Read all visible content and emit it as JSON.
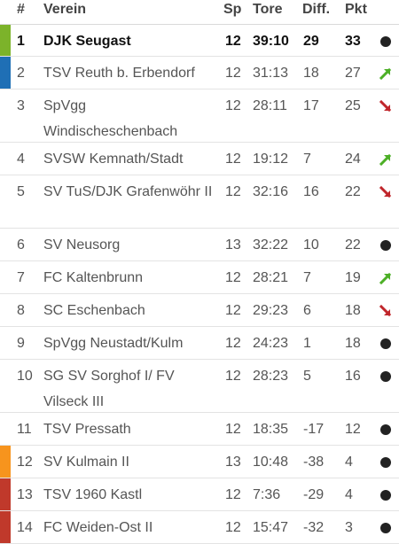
{
  "header": {
    "rank": "#",
    "team": "Verein",
    "sp": "Sp",
    "tore": "Tore",
    "diff": "Diff.",
    "pkt": "Pkt"
  },
  "rows": [
    {
      "rank": "1",
      "team": "DJK Seugast",
      "sp": "12",
      "tore": "39:10",
      "diff": "29",
      "pkt": "33",
      "trend": "same-dot-icon",
      "bar": "#7cb32a",
      "leader": true
    },
    {
      "rank": "2",
      "team": "TSV Reuth b. Erbendorf",
      "sp": "12",
      "tore": "31:13",
      "diff": "18",
      "pkt": "27",
      "trend": "up-arrow-icon",
      "bar": "#1f6fb5"
    },
    {
      "rank": "3",
      "team": "SpVgg Windischeschenbach",
      "sp": "12",
      "tore": "28:11",
      "diff": "17",
      "pkt": "25",
      "trend": "down-arrow-icon",
      "bar": ""
    },
    {
      "rank": "4",
      "team": "SVSW Kemnath/Stadt",
      "sp": "12",
      "tore": "19:12",
      "diff": "7",
      "pkt": "24",
      "trend": "up-arrow-icon",
      "bar": ""
    },
    {
      "rank": "5",
      "team": "SV TuS/DJK Grafenwöhr II",
      "sp": "12",
      "tore": "32:16",
      "diff": "16",
      "pkt": "22",
      "trend": "down-arrow-icon",
      "bar": ""
    },
    {
      "rank": "6",
      "team": "SV Neusorg",
      "sp": "13",
      "tore": "32:22",
      "diff": "10",
      "pkt": "22",
      "trend": "same-dot-icon",
      "bar": ""
    },
    {
      "rank": "7",
      "team": "FC Kaltenbrunn",
      "sp": "12",
      "tore": "28:21",
      "diff": "7",
      "pkt": "19",
      "trend": "up-arrow-icon",
      "bar": ""
    },
    {
      "rank": "8",
      "team": "SC Eschenbach",
      "sp": "12",
      "tore": "29:23",
      "diff": "6",
      "pkt": "18",
      "trend": "down-arrow-icon",
      "bar": ""
    },
    {
      "rank": "9",
      "team": "SpVgg Neustadt/Kulm",
      "sp": "12",
      "tore": "24:23",
      "diff": "1",
      "pkt": "18",
      "trend": "same-dot-icon",
      "bar": ""
    },
    {
      "rank": "10",
      "team": "SG SV Sorghof I/ FV Vilseck III",
      "sp": "12",
      "tore": "28:23",
      "diff": "5",
      "pkt": "16",
      "trend": "same-dot-icon",
      "bar": ""
    },
    {
      "rank": "11",
      "team": "TSV Pressath",
      "sp": "12",
      "tore": "18:35",
      "diff": "-17",
      "pkt": "12",
      "trend": "same-dot-icon",
      "bar": ""
    },
    {
      "rank": "12",
      "team": "SV Kulmain II",
      "sp": "13",
      "tore": "10:48",
      "diff": "-38",
      "pkt": "4",
      "trend": "same-dot-icon",
      "bar": "#f7941d"
    },
    {
      "rank": "13",
      "team": "TSV 1960 Kastl",
      "sp": "12",
      "tore": "7:36",
      "diff": "-29",
      "pkt": "4",
      "trend": "same-dot-icon",
      "bar": "#c0392b"
    },
    {
      "rank": "14",
      "team": "FC Weiden-Ost II",
      "sp": "12",
      "tore": "15:47",
      "diff": "-32",
      "pkt": "3",
      "trend": "same-dot-icon",
      "bar": "#c0392b"
    }
  ],
  "colors": {
    "up": "#4caf26",
    "down": "#c0262b",
    "dot": "#222222"
  }
}
